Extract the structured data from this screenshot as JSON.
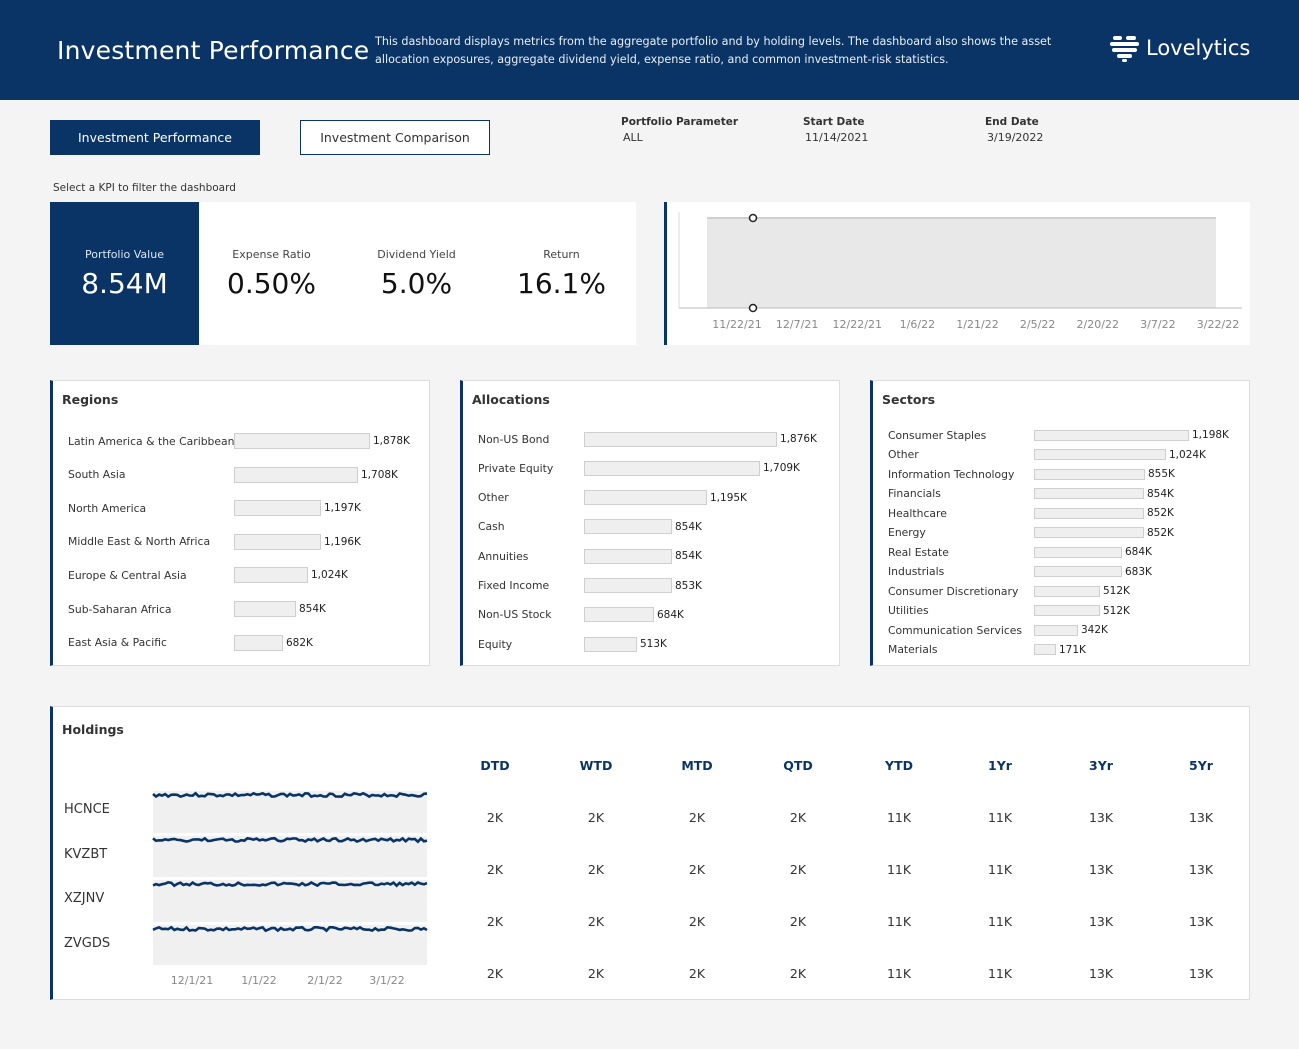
{
  "header": {
    "title": "Investment Performance",
    "description": "This dashboard displays metrics from the aggregate  portfolio and by holding levels. The dashboard also shows the asset allocation exposures, aggregate dividend yield, expense ratio, and common investment-risk statistics.",
    "logo_text": "Lovelytics"
  },
  "nav": {
    "active_label": "Investment Performance",
    "inactive_label": "Investment Comparison"
  },
  "params": [
    {
      "label": "Portfolio Parameter",
      "value": "ALL"
    },
    {
      "label": "Start Date",
      "value": "11/14/2021"
    },
    {
      "label": "End Date",
      "value": "3/19/2022"
    }
  ],
  "kpi_caption": "Select a KPI to filter the dashboard",
  "kpis": [
    {
      "label": "Portfolio Value",
      "value": "8.54M"
    },
    {
      "label": "Expense Ratio",
      "value": "0.50%"
    },
    {
      "label": "Dividend Yield",
      "value": "5.0%"
    },
    {
      "label": "Return",
      "value": "16.1%"
    }
  ],
  "colors": {
    "brand": "#0a3466",
    "bar_fill": "#efefef",
    "spark_line": "#0a3466",
    "area_fill": "#e8e8e8"
  },
  "chart_data": [
    {
      "type": "area",
      "x_tick_labels": [
        "11/22/21",
        "12/7/21",
        "12/22/21",
        "1/6/22",
        "1/21/22",
        "2/5/22",
        "2/20/22",
        "3/7/22",
        "3/22/22"
      ]
    },
    {
      "type": "bar",
      "title": "Regions",
      "categories": [
        "Latin America & the Caribbean",
        "South Asia",
        "North America",
        "Middle East & North Africa",
        "Europe & Central Asia",
        "Sub-Saharan Africa",
        "East Asia & Pacific"
      ],
      "values": [
        1878,
        1708,
        1197,
        1196,
        1024,
        854,
        682
      ],
      "labels": [
        "1,878K",
        "1,708K",
        "1,197K",
        "1,196K",
        "1,024K",
        "854K",
        "682K"
      ]
    },
    {
      "type": "bar",
      "title": "Allocations",
      "categories": [
        "Non-US Bond",
        "Private Equity",
        "Other",
        "Cash",
        "Annuities",
        "Fixed Income",
        "Non-US Stock",
        "Equity"
      ],
      "values": [
        1876,
        1709,
        1195,
        854,
        854,
        853,
        684,
        513
      ],
      "labels": [
        "1,876K",
        "1,709K",
        "1,195K",
        "854K",
        "854K",
        "853K",
        "684K",
        "513K"
      ]
    },
    {
      "type": "bar",
      "title": "Sectors",
      "categories": [
        "Consumer Staples",
        "Other",
        "Information Technology",
        "Financials",
        "Healthcare",
        "Energy",
        "Real Estate",
        "Industrials",
        "Consumer Discretionary",
        "Utilities",
        "Communication Services",
        "Materials"
      ],
      "values": [
        1198,
        1024,
        855,
        854,
        852,
        852,
        684,
        683,
        512,
        512,
        342,
        171
      ],
      "labels": [
        "1,198K",
        "1,024K",
        "855K",
        "854K",
        "852K",
        "852K",
        "684K",
        "683K",
        "512K",
        "512K",
        "342K",
        "171K"
      ]
    },
    {
      "type": "line",
      "title": "Holdings",
      "x_tick_labels": [
        "12/1/21",
        "1/1/22",
        "2/1/22",
        "3/1/22"
      ],
      "series": [
        {
          "name": "HCNCE"
        },
        {
          "name": "KVZBT"
        },
        {
          "name": "XZJNV"
        },
        {
          "name": "ZVGDS"
        }
      ]
    }
  ],
  "holdings": {
    "title": "Holdings",
    "columns": [
      "DTD",
      "WTD",
      "MTD",
      "QTD",
      "YTD",
      "1Yr",
      "3Yr",
      "5Yr"
    ],
    "rows": [
      {
        "ticker": "HCNCE",
        "values": [
          "2K",
          "2K",
          "2K",
          "2K",
          "11K",
          "11K",
          "13K",
          "13K"
        ]
      },
      {
        "ticker": "KVZBT",
        "values": [
          "2K",
          "2K",
          "2K",
          "2K",
          "11K",
          "11K",
          "13K",
          "13K"
        ]
      },
      {
        "ticker": "XZJNV",
        "values": [
          "2K",
          "2K",
          "2K",
          "2K",
          "11K",
          "11K",
          "13K",
          "13K"
        ]
      },
      {
        "ticker": "ZVGDS",
        "values": [
          "2K",
          "2K",
          "2K",
          "2K",
          "11K",
          "11K",
          "13K",
          "13K"
        ]
      }
    ]
  }
}
